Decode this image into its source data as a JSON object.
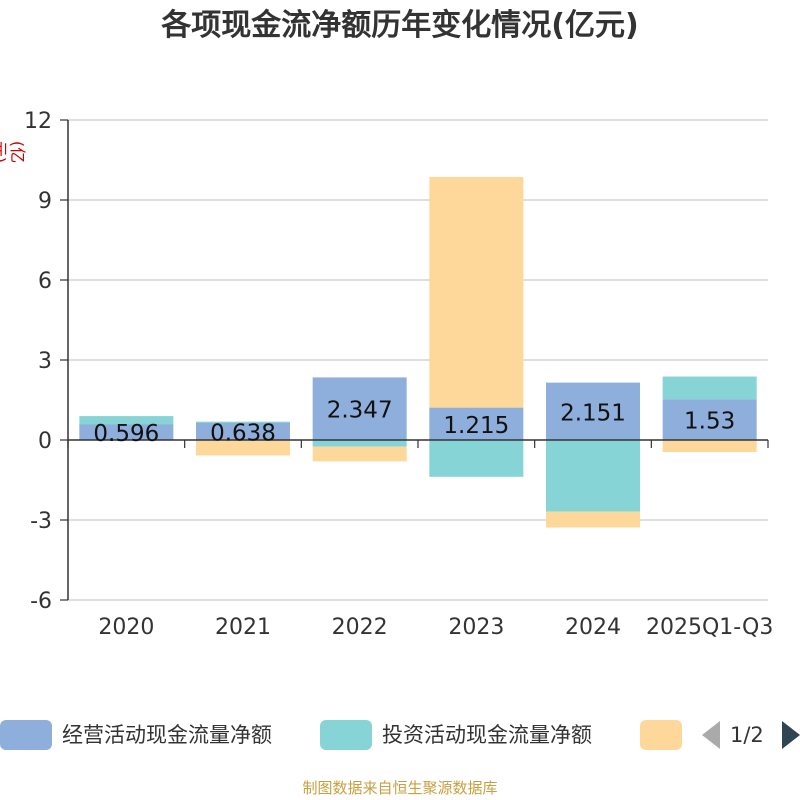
{
  "title": "各项现金流净额历年变化情况(亿元)",
  "unit_label": "(亿元)",
  "source": "制图数据来自恒生聚源数据库",
  "legend": {
    "items": [
      {
        "label": "经营活动现金流量净额",
        "color": "#8eaedb"
      },
      {
        "label": "投资活动现金流量净额",
        "color": "#86d4d6"
      },
      {
        "label": "",
        "color": "#fdd89a"
      }
    ],
    "page_text": "1/2"
  },
  "colors": {
    "axis": "#333333",
    "grid": "#cccccc",
    "tick_text": "#333333",
    "bar_label": "#111111"
  },
  "chart_data": {
    "type": "bar",
    "stacked": true,
    "title": "各项现金流净额历年变化情况(亿元)",
    "xlabel": "",
    "ylabel": "(亿元)",
    "categories": [
      "2020",
      "2021",
      "2022",
      "2023",
      "2024",
      "2025Q1-Q3"
    ],
    "ylim": [
      -6,
      12
    ],
    "yticks": [
      12,
      9,
      6,
      3,
      0,
      -3,
      -6
    ],
    "ytick_labels": [
      "12",
      "9",
      "6",
      "3",
      "0",
      "-3",
      "-6"
    ],
    "grid": true,
    "series": [
      {
        "name": "经营活动现金流量净额",
        "values": [
          0.596,
          0.638,
          2.347,
          1.215,
          2.151,
          1.53
        ],
        "labels": [
          "0.596",
          "0.638",
          "2.347",
          "1.215",
          "2.151",
          "1.53"
        ],
        "color": "#8eaedb"
      },
      {
        "name": "投资活动现金流量净额",
        "values": [
          0.3,
          0.05,
          -0.25,
          -1.38,
          -2.68,
          0.85
        ],
        "color": "#86d4d6"
      },
      {
        "name": "",
        "values": [
          0,
          -0.58,
          -0.55,
          8.65,
          -0.6,
          -0.45
        ],
        "color": "#fdd89a"
      }
    ]
  }
}
